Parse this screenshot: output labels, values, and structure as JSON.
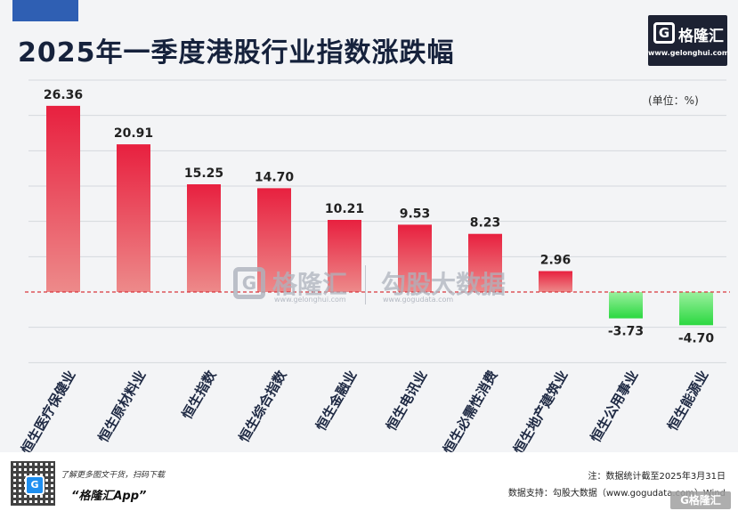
{
  "header": {
    "title": "2025年一季度港股行业指数涨跌幅",
    "unit": "(单位：%)",
    "logo_name": "格隆汇",
    "logo_mark": "G",
    "logo_url": "www.gelonghui.com"
  },
  "watermark": {
    "mark": "G",
    "left": "格隆汇",
    "left_url": "www.gelonghui.com",
    "right": "勾股大数据",
    "right_url": "www.gogudata.com"
  },
  "footer": {
    "promo_line1": "了解更多图文干货，扫码下载",
    "promo_line2": "“格隆汇App”",
    "qr_badge": "G",
    "note": "注：数据统计截至2025年3月31日",
    "source": "数据支持：勾股大数据（www.gogudata.com）Wind",
    "corner_badge": "G格隆汇"
  },
  "chart_data": {
    "type": "bar",
    "title": "2025年一季度港股行业指数涨跌幅",
    "categories": [
      "恒生医疗保健业",
      "恒生原材料业",
      "恒生指数",
      "恒生综合指数",
      "恒生金融业",
      "恒生电讯业",
      "恒生必需性消费",
      "恒生地产建筑业",
      "恒生公用事业",
      "恒生能源业"
    ],
    "values": [
      26.36,
      20.91,
      15.25,
      14.7,
      10.21,
      9.53,
      8.23,
      2.96,
      -3.73,
      -4.7
    ],
    "labels": [
      "26.36",
      "20.91",
      "15.25",
      "14.70",
      "10.21",
      "9.53",
      "8.23",
      "2.96",
      "-3.73",
      "-4.70"
    ],
    "ylim": [
      -10,
      30
    ],
    "grid": true,
    "colors": {
      "positive_top": "#e8203f",
      "positive_bottom": "#ed8a8a",
      "negative_top": "#9af09e",
      "negative_bottom": "#2bd840",
      "zero_line": "#d9363e"
    }
  }
}
